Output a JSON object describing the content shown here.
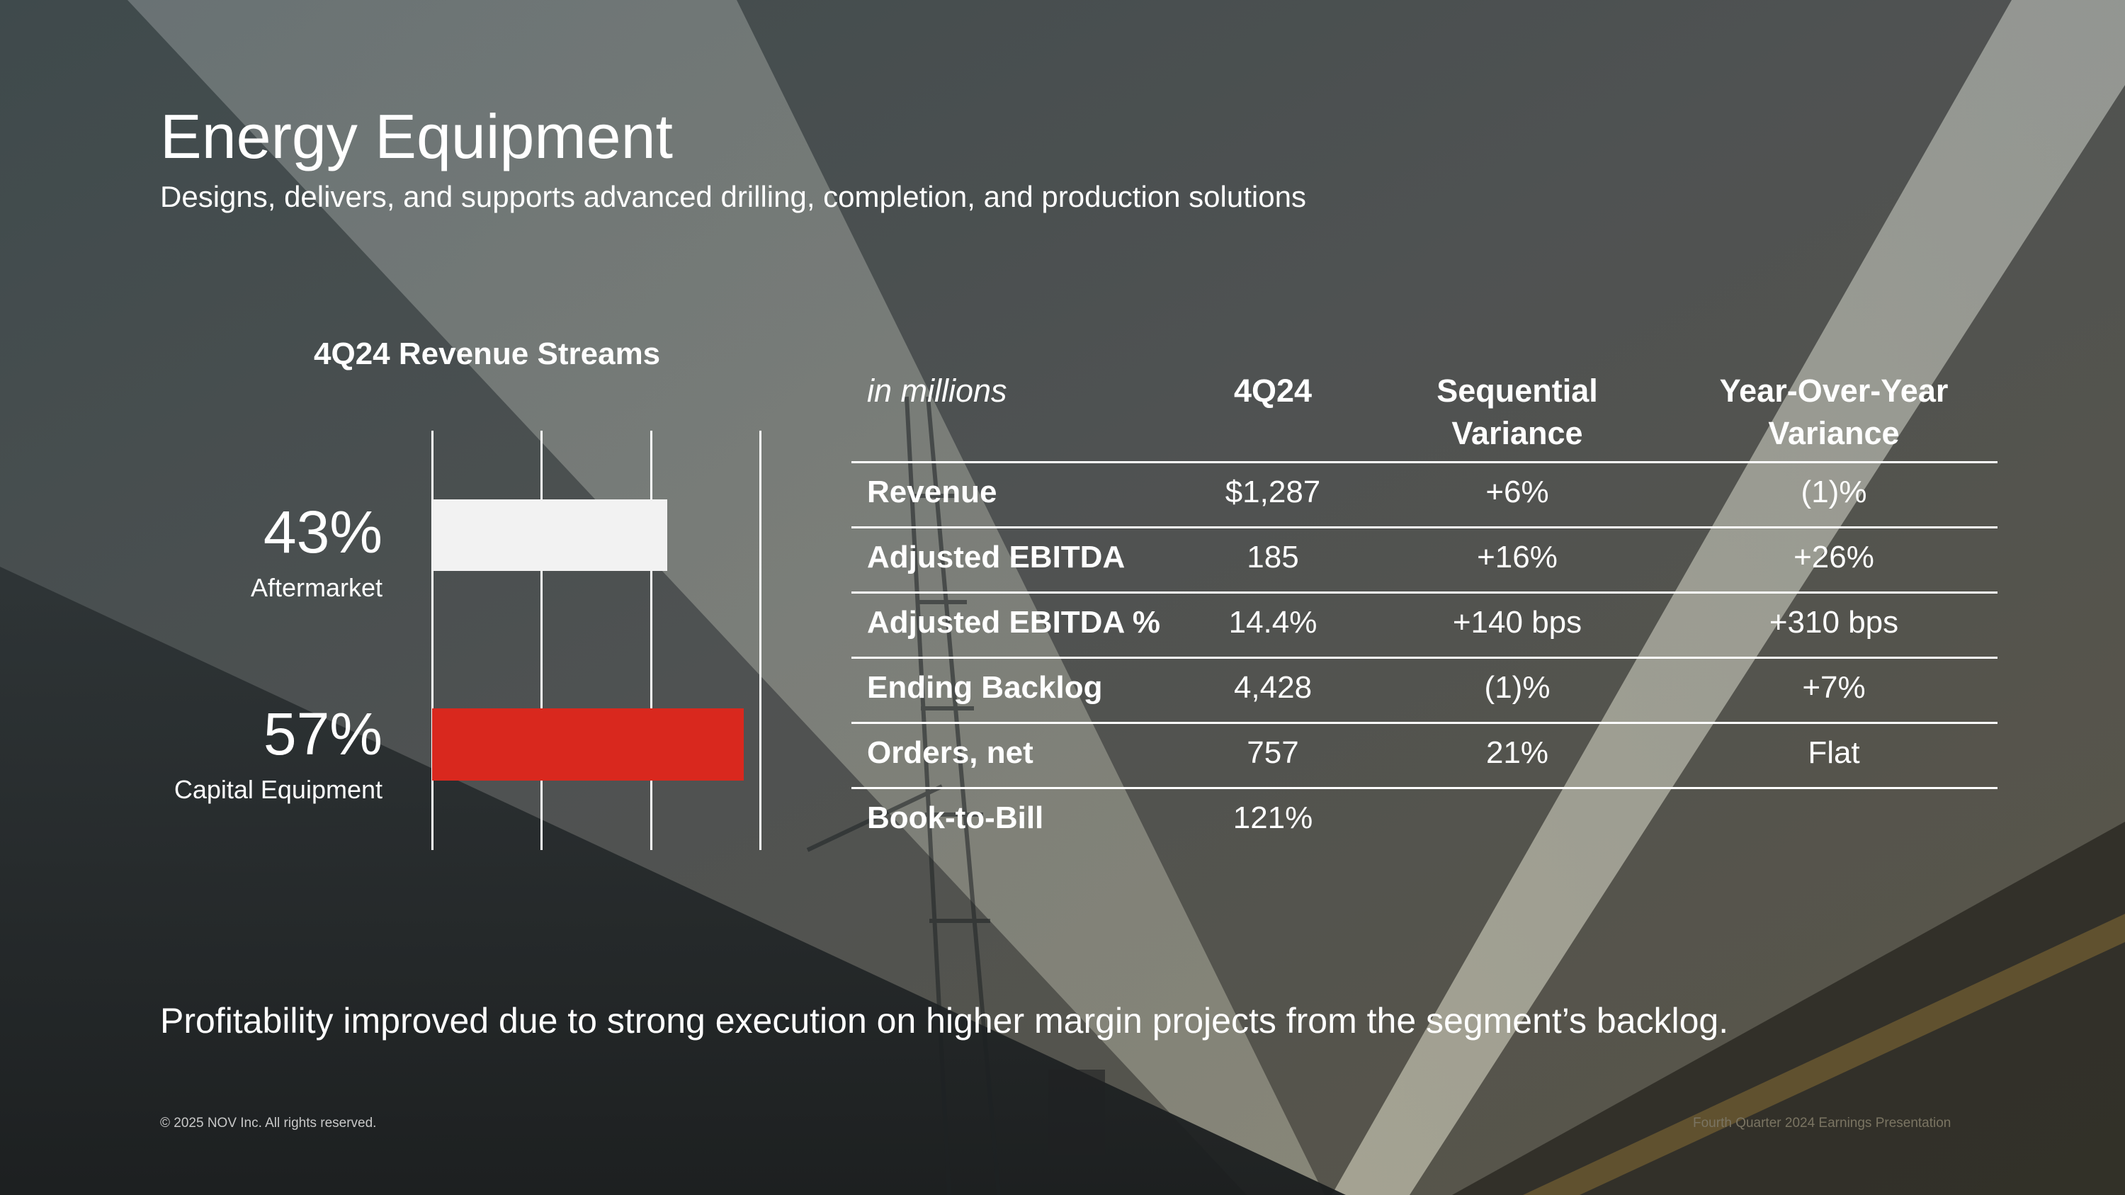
{
  "header": {
    "title": "Energy Equipment",
    "subtitle": "Designs, delivers, and supports advanced drilling, completion, and production solutions"
  },
  "chart_data": {
    "type": "bar",
    "orientation": "horizontal",
    "title": "4Q24 Revenue Streams",
    "categories": [
      "Aftermarket",
      "Capital Equipment"
    ],
    "values": [
      43,
      57
    ],
    "value_labels": [
      "43%",
      "57%"
    ],
    "colors": [
      "#f2f2f2",
      "#d9281e"
    ],
    "xlim": [
      0,
      60
    ],
    "gridlines": [
      0,
      20,
      40,
      60
    ],
    "unit": "%"
  },
  "table": {
    "headers": [
      "in millions",
      "4Q24",
      "Sequential Variance",
      "Year-Over-Year Variance"
    ],
    "header_lines": [
      [
        "in millions"
      ],
      [
        "4Q24"
      ],
      [
        "Sequential",
        "Variance"
      ],
      [
        "Year-Over-Year",
        "Variance"
      ]
    ],
    "rows": [
      [
        "Revenue",
        "$1,287",
        "+6%",
        "(1)%"
      ],
      [
        "Adjusted EBITDA",
        "185",
        "+16%",
        "+26%"
      ],
      [
        "Adjusted EBITDA %",
        "14.4%",
        "+140 bps",
        "+310 bps"
      ],
      [
        "Ending Backlog",
        "4,428",
        "(1)%",
        "+7%"
      ],
      [
        "Orders, net",
        "757",
        "21%",
        "Flat"
      ],
      [
        "Book-to-Bill",
        "121%",
        "",
        ""
      ]
    ]
  },
  "takeaway": "Profitability improved due to strong execution on higher margin projects from the segment’s backlog.",
  "footer": {
    "copyright": "© 2025 NOV Inc. All rights reserved.",
    "presentation": "Fourth Quarter 2024 Earnings Presentation"
  },
  "colors": {
    "accent_red": "#d9281e",
    "bar_light": "#f2f2f2",
    "text": "#ffffff"
  }
}
